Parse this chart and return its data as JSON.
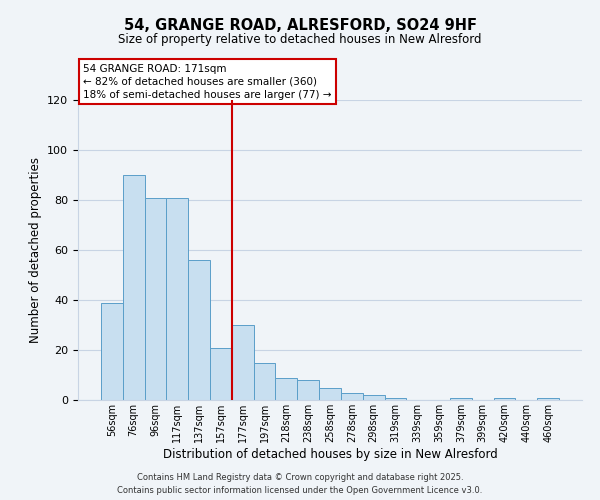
{
  "title1": "54, GRANGE ROAD, ALRESFORD, SO24 9HF",
  "title2": "Size of property relative to detached houses in New Alresford",
  "xlabel": "Distribution of detached houses by size in New Alresford",
  "ylabel": "Number of detached properties",
  "bar_labels": [
    "56sqm",
    "76sqm",
    "96sqm",
    "117sqm",
    "137sqm",
    "157sqm",
    "177sqm",
    "197sqm",
    "218sqm",
    "238sqm",
    "258sqm",
    "278sqm",
    "298sqm",
    "319sqm",
    "339sqm",
    "359sqm",
    "379sqm",
    "399sqm",
    "420sqm",
    "440sqm",
    "460sqm"
  ],
  "bar_values": [
    39,
    90,
    81,
    81,
    56,
    21,
    30,
    15,
    9,
    8,
    5,
    3,
    2,
    1,
    0,
    0,
    1,
    0,
    1,
    0,
    1
  ],
  "bar_color": "#c8dff0",
  "bar_edgecolor": "#5a9ec9",
  "vline_color": "#cc0000",
  "vline_x_index": 6,
  "annotation_line1": "54 GRANGE ROAD: 171sqm",
  "annotation_line2": "← 82% of detached houses are smaller (360)",
  "annotation_line3": "18% of semi-detached houses are larger (77) →",
  "annotation_box_edgecolor": "#cc0000",
  "ylim": [
    0,
    120
  ],
  "yticks": [
    0,
    20,
    40,
    60,
    80,
    100,
    120
  ],
  "footer1": "Contains HM Land Registry data © Crown copyright and database right 2025.",
  "footer2": "Contains public sector information licensed under the Open Government Licence v3.0.",
  "bg_color": "#f0f4f8",
  "plot_bg_color": "#f0f4f8",
  "grid_color": "#c8d4e4"
}
